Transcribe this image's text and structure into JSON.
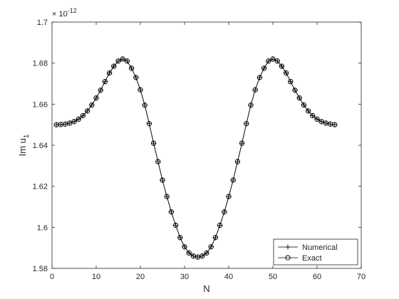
{
  "chart_data": {
    "type": "line",
    "title": "",
    "xlabel": "N",
    "ylabel": "Im u",
    "ylabel_subscript": "1",
    "xlim": [
      0,
      70
    ],
    "ylim": [
      1.58,
      1.7
    ],
    "x_ticks": [
      0,
      10,
      20,
      30,
      40,
      50,
      60,
      70
    ],
    "y_ticks": [
      1.58,
      1.6,
      1.62,
      1.64,
      1.66,
      1.68,
      1.7
    ],
    "x_tick_labels": [
      "0",
      "10",
      "20",
      "30",
      "40",
      "50",
      "60",
      "70"
    ],
    "y_tick_labels": [
      "1.58",
      "1.6",
      "1.62",
      "1.64",
      "1.66",
      "1.68",
      "1.7"
    ],
    "y_multiplier": "× 10",
    "y_multiplier_exponent": "-12",
    "grid": false,
    "legend_position": "bottom-right",
    "x": [
      1,
      2,
      3,
      4,
      5,
      6,
      7,
      8,
      9,
      10,
      11,
      12,
      13,
      14,
      15,
      16,
      17,
      18,
      19,
      20,
      21,
      22,
      23,
      24,
      25,
      26,
      27,
      28,
      29,
      30,
      31,
      32,
      33,
      34,
      35,
      36,
      37,
      38,
      39,
      40,
      41,
      42,
      43,
      44,
      45,
      46,
      47,
      48,
      49,
      50,
      51,
      52,
      53,
      54,
      55,
      56,
      57,
      58,
      59,
      60,
      61,
      62,
      63,
      64
    ],
    "series": [
      {
        "name": "Numerical",
        "marker": "plus",
        "line": "solid",
        "color": "#000000",
        "values": [
          1.65,
          1.6501,
          1.6503,
          1.6508,
          1.6515,
          1.6527,
          1.6544,
          1.6567,
          1.6596,
          1.663,
          1.6668,
          1.671,
          1.6752,
          1.6785,
          1.681,
          1.682,
          1.681,
          1.6775,
          1.673,
          1.667,
          1.6595,
          1.6505,
          1.641,
          1.632,
          1.623,
          1.615,
          1.6075,
          1.601,
          1.595,
          1.5905,
          1.5875,
          1.586,
          1.5855,
          1.586,
          1.5875,
          1.5905,
          1.595,
          1.601,
          1.6075,
          1.615,
          1.623,
          1.632,
          1.641,
          1.6505,
          1.6595,
          1.667,
          1.673,
          1.6775,
          1.681,
          1.682,
          1.681,
          1.6785,
          1.6752,
          1.671,
          1.6668,
          1.663,
          1.6596,
          1.6567,
          1.6544,
          1.6527,
          1.6515,
          1.6508,
          1.6503,
          1.65
        ]
      },
      {
        "name": "Exact",
        "marker": "circle",
        "line": "solid",
        "color": "#000000",
        "values": [
          1.65,
          1.6501,
          1.6503,
          1.6508,
          1.6515,
          1.6527,
          1.6544,
          1.6567,
          1.6596,
          1.663,
          1.6668,
          1.671,
          1.6752,
          1.6785,
          1.681,
          1.682,
          1.681,
          1.6775,
          1.673,
          1.667,
          1.6595,
          1.6505,
          1.641,
          1.632,
          1.623,
          1.615,
          1.6075,
          1.601,
          1.595,
          1.5905,
          1.5875,
          1.586,
          1.5855,
          1.586,
          1.5875,
          1.5905,
          1.595,
          1.601,
          1.6075,
          1.615,
          1.623,
          1.632,
          1.641,
          1.6505,
          1.6595,
          1.667,
          1.673,
          1.6775,
          1.681,
          1.682,
          1.681,
          1.6785,
          1.6752,
          1.671,
          1.6668,
          1.663,
          1.6596,
          1.6567,
          1.6544,
          1.6527,
          1.6515,
          1.6508,
          1.6503,
          1.65
        ]
      }
    ]
  }
}
